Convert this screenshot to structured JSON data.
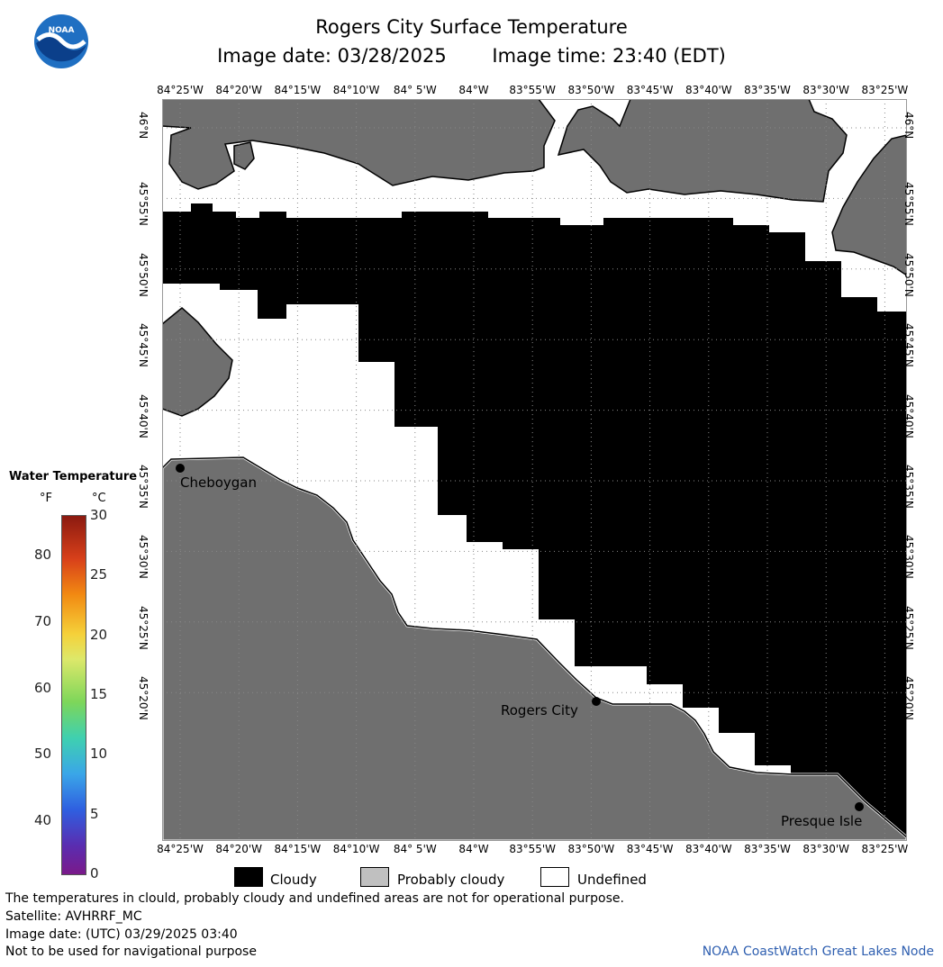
{
  "title": "Rogers City Surface Temperature",
  "image_date_label": "Image date: 03/28/2025",
  "image_time_label": "Image time: 23:40 (EDT)",
  "logo": {
    "name": "noaa-logo-icon",
    "text": "NOAA",
    "colors": [
      "#1f6fc2",
      "#0b3f8a",
      "#ffffff"
    ]
  },
  "longitude_labels": [
    "84°25'W",
    "84°20'W",
    "84°15'W",
    "84°10'W",
    "84° 5'W",
    "84°W",
    "83°55'W",
    "83°50'W",
    "83°45'W",
    "83°40'W",
    "83°35'W",
    "83°30'W",
    "83°25'W"
  ],
  "latitude_labels": [
    "46°N",
    "45°55'N",
    "45°50'N",
    "45°45'N",
    "45°40'N",
    "45°35'N",
    "45°30'N",
    "45°25'N",
    "45°20'N"
  ],
  "cities": [
    {
      "name": "Cheboygan"
    },
    {
      "name": "Rogers City"
    },
    {
      "name": "Presque Isle"
    }
  ],
  "temperature_legend": {
    "title": "Water Temperature",
    "unit_f": "°F",
    "unit_c": "°C",
    "fahrenheit_ticks": [
      "80",
      "70",
      "60",
      "50",
      "40"
    ],
    "celsius_ticks": [
      "30",
      "25",
      "20",
      "15",
      "10",
      "5",
      "0"
    ]
  },
  "category_legend": [
    {
      "label": "Cloudy",
      "color": "#000000"
    },
    {
      "label": "Probably cloudy",
      "color": "#c0c0c0"
    },
    {
      "label": "Undefined",
      "color": "#ffffff"
    }
  ],
  "colors": {
    "land": "#6f6f6f",
    "cloud": "#000000",
    "undefined": "#ffffff",
    "credit": "#2f5fb0"
  },
  "notes": {
    "disclaimer": "The temperatures in clould, probably cloudy and undefined areas are not for operational purpose.",
    "satellite": "Satellite: AVHRRF_MC",
    "utc_date": "Image date: (UTC) 03/29/2025  03:40",
    "navigation": "Not to be used for navigational purpose"
  },
  "credit": "NOAA CoastWatch Great Lakes Node"
}
